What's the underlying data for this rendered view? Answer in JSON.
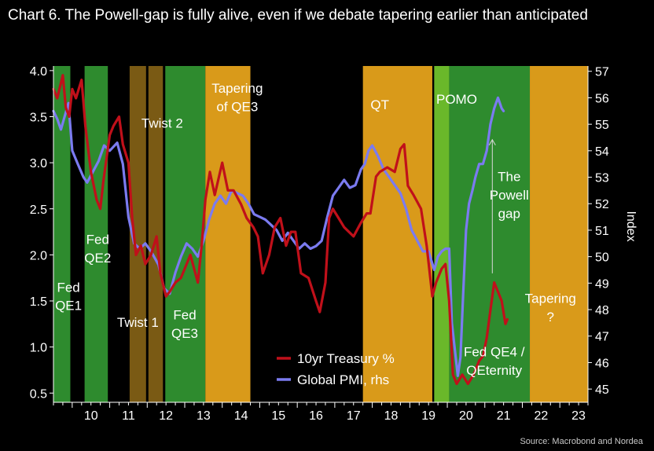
{
  "chart_data": {
    "type": "line",
    "title": "Chart 6. The Powell-gap is fully alive, even if we debate tapering earlier than anticipated",
    "source": "Source: Macrobond and Nordea",
    "xlim": [
      2009.5,
      2023.75
    ],
    "ylim_left": [
      0.4,
      4.05
    ],
    "ylim_right": [
      44.5,
      57.2
    ],
    "ylabel_right": "Index",
    "x_ticks": [
      {
        "x": 2010.0,
        "label": "10"
      },
      {
        "x": 2011.0,
        "label": "11"
      },
      {
        "x": 2012.0,
        "label": "12"
      },
      {
        "x": 2013.0,
        "label": "13"
      },
      {
        "x": 2014.0,
        "label": "14"
      },
      {
        "x": 2015.0,
        "label": "15"
      },
      {
        "x": 2016.0,
        "label": "16"
      },
      {
        "x": 2017.0,
        "label": "17"
      },
      {
        "x": 2018.0,
        "label": "18"
      },
      {
        "x": 2019.0,
        "label": "19"
      },
      {
        "x": 2020.0,
        "label": "20"
      },
      {
        "x": 2021.0,
        "label": "21"
      },
      {
        "x": 2022.0,
        "label": "22"
      },
      {
        "x": 2023.0,
        "label": "23"
      }
    ],
    "y_left_ticks": [
      {
        "v": 0.5,
        "label": "0.5"
      },
      {
        "v": 1.0,
        "label": "1.0"
      },
      {
        "v": 1.5,
        "label": "1.5"
      },
      {
        "v": 2.0,
        "label": "2.0"
      },
      {
        "v": 2.5,
        "label": "2.5"
      },
      {
        "v": 3.0,
        "label": "3.0"
      },
      {
        "v": 3.5,
        "label": "3.5"
      },
      {
        "v": 4.0,
        "label": "4.0"
      }
    ],
    "y_right_ticks": [
      {
        "v": 45,
        "label": "45"
      },
      {
        "v": 46,
        "label": "46"
      },
      {
        "v": 47,
        "label": "47"
      },
      {
        "v": 48,
        "label": "48"
      },
      {
        "v": 49,
        "label": "49"
      },
      {
        "v": 50,
        "label": "50"
      },
      {
        "v": 51,
        "label": "51"
      },
      {
        "v": 52,
        "label": "52"
      },
      {
        "v": 53,
        "label": "53"
      },
      {
        "v": 54,
        "label": "54"
      },
      {
        "v": 55,
        "label": "55"
      },
      {
        "v": 56,
        "label": "56"
      },
      {
        "v": 57,
        "label": "57"
      }
    ],
    "bands": [
      {
        "x0": 2009.5,
        "x1": 2009.95,
        "color": "#2e8b2e"
      },
      {
        "x0": 2010.33,
        "x1": 2010.95,
        "color": "#2e8b2e"
      },
      {
        "x0": 2011.5,
        "x1": 2012.0,
        "color": "#7a5a14"
      },
      {
        "x0": 2012.0,
        "x1": 2012.45,
        "color": "#7a5a14"
      },
      {
        "x0": 2012.45,
        "x1": 2013.55,
        "color": "#2e8b2e"
      },
      {
        "x0": 2013.55,
        "x1": 2014.75,
        "color": "#d99a1a"
      },
      {
        "x0": 2017.75,
        "x1": 2019.6,
        "color": "#d99a1a"
      },
      {
        "x0": 2019.65,
        "x1": 2020.05,
        "color": "#6ab82a"
      },
      {
        "x0": 2020.05,
        "x1": 2022.2,
        "color": "#2e8b2e"
      },
      {
        "x0": 2022.2,
        "x1": 2023.75,
        "color": "#d99a1a"
      }
    ],
    "band_dividers": [
      2011.5,
      2012.0,
      2012.45
    ],
    "annotations": [
      {
        "text": "Fed",
        "x": 2009.9,
        "y": 1.6,
        "anchor": "middle"
      },
      {
        "text": "QE1",
        "x": 2009.9,
        "y": 1.4,
        "anchor": "middle"
      },
      {
        "text": "Fed",
        "x": 2010.68,
        "y": 2.12,
        "anchor": "middle"
      },
      {
        "text": "QE2",
        "x": 2010.68,
        "y": 1.92,
        "anchor": "middle"
      },
      {
        "text": "Twist 2",
        "x": 2012.4,
        "y": 3.38,
        "anchor": "middle"
      },
      {
        "text": "Twist 1",
        "x": 2011.75,
        "y": 1.22,
        "anchor": "middle"
      },
      {
        "text": "Fed",
        "x": 2013.0,
        "y": 1.3,
        "anchor": "middle"
      },
      {
        "text": "QE3",
        "x": 2013.0,
        "y": 1.1,
        "anchor": "middle"
      },
      {
        "text": "Tapering",
        "x": 2014.4,
        "y": 3.76,
        "anchor": "middle"
      },
      {
        "text": "of QE3",
        "x": 2014.4,
        "y": 3.56,
        "anchor": "middle"
      },
      {
        "text": "QT",
        "x": 2018.2,
        "y": 3.58,
        "anchor": "middle"
      },
      {
        "text": "POMO",
        "x": 2020.25,
        "y": 3.64,
        "anchor": "middle"
      },
      {
        "text": "The",
        "x": 2021.65,
        "y": 2.8,
        "anchor": "middle"
      },
      {
        "text": "Powell",
        "x": 2021.65,
        "y": 2.6,
        "anchor": "middle"
      },
      {
        "text": "gap",
        "x": 2021.65,
        "y": 2.4,
        "anchor": "middle"
      },
      {
        "text": "Fed QE4 /",
        "x": 2021.25,
        "y": 0.9,
        "anchor": "middle"
      },
      {
        "text": "QEternity",
        "x": 2021.25,
        "y": 0.7,
        "anchor": "middle"
      },
      {
        "text": "Tapering",
        "x": 2022.75,
        "y": 1.48,
        "anchor": "middle"
      },
      {
        "text": "?",
        "x": 2022.75,
        "y": 1.28,
        "anchor": "middle"
      }
    ],
    "arrow": {
      "x": 2021.2,
      "y_from": 1.8,
      "y_to": 3.25
    },
    "legend": {
      "placement": "bottom-center",
      "items": [
        {
          "name": "10yr Treasury %",
          "color": "#c0101a"
        },
        {
          "name": "Global PMI, rhs",
          "color": "#7b7bf0"
        }
      ]
    },
    "series": [
      {
        "name": "10yr Treasury %",
        "axis": "left",
        "color": "#c0101a",
        "points": [
          [
            2009.5,
            3.8
          ],
          [
            2009.6,
            3.7
          ],
          [
            2009.75,
            3.95
          ],
          [
            2009.83,
            3.6
          ],
          [
            2009.92,
            3.5
          ],
          [
            2010.0,
            3.8
          ],
          [
            2010.1,
            3.7
          ],
          [
            2010.25,
            3.9
          ],
          [
            2010.35,
            3.4
          ],
          [
            2010.5,
            2.9
          ],
          [
            2010.65,
            2.6
          ],
          [
            2010.75,
            2.5
          ],
          [
            2010.83,
            2.8
          ],
          [
            2011.0,
            3.3
          ],
          [
            2011.1,
            3.4
          ],
          [
            2011.25,
            3.5
          ],
          [
            2011.35,
            3.2
          ],
          [
            2011.5,
            3.0
          ],
          [
            2011.6,
            2.4
          ],
          [
            2011.7,
            2.0
          ],
          [
            2011.83,
            2.1
          ],
          [
            2011.95,
            1.9
          ],
          [
            2012.1,
            2.0
          ],
          [
            2012.25,
            2.2
          ],
          [
            2012.35,
            1.8
          ],
          [
            2012.5,
            1.55
          ],
          [
            2012.6,
            1.6
          ],
          [
            2012.75,
            1.7
          ],
          [
            2012.9,
            1.75
          ],
          [
            2013.0,
            1.85
          ],
          [
            2013.15,
            2.0
          ],
          [
            2013.35,
            1.7
          ],
          [
            2013.45,
            2.1
          ],
          [
            2013.55,
            2.6
          ],
          [
            2013.67,
            2.9
          ],
          [
            2013.8,
            2.65
          ],
          [
            2014.0,
            3.0
          ],
          [
            2014.15,
            2.7
          ],
          [
            2014.3,
            2.7
          ],
          [
            2014.5,
            2.55
          ],
          [
            2014.65,
            2.4
          ],
          [
            2014.83,
            2.3
          ],
          [
            2014.95,
            2.2
          ],
          [
            2015.08,
            1.8
          ],
          [
            2015.25,
            2.0
          ],
          [
            2015.4,
            2.3
          ],
          [
            2015.55,
            2.4
          ],
          [
            2015.7,
            2.1
          ],
          [
            2015.83,
            2.25
          ],
          [
            2015.95,
            2.25
          ],
          [
            2016.1,
            1.8
          ],
          [
            2016.3,
            1.75
          ],
          [
            2016.5,
            1.5
          ],
          [
            2016.6,
            1.38
          ],
          [
            2016.75,
            1.7
          ],
          [
            2016.85,
            2.4
          ],
          [
            2016.95,
            2.5
          ],
          [
            2017.1,
            2.4
          ],
          [
            2017.25,
            2.3
          ],
          [
            2017.5,
            2.2
          ],
          [
            2017.7,
            2.35
          ],
          [
            2017.85,
            2.45
          ],
          [
            2017.95,
            2.45
          ],
          [
            2018.1,
            2.85
          ],
          [
            2018.2,
            2.9
          ],
          [
            2018.4,
            2.95
          ],
          [
            2018.6,
            2.9
          ],
          [
            2018.75,
            3.15
          ],
          [
            2018.85,
            3.2
          ],
          [
            2018.95,
            2.75
          ],
          [
            2019.1,
            2.65
          ],
          [
            2019.3,
            2.5
          ],
          [
            2019.45,
            2.1
          ],
          [
            2019.6,
            1.55
          ],
          [
            2019.7,
            1.7
          ],
          [
            2019.85,
            1.85
          ],
          [
            2019.95,
            1.9
          ],
          [
            2020.05,
            1.5
          ],
          [
            2020.15,
            0.7
          ],
          [
            2020.25,
            0.6
          ],
          [
            2020.4,
            0.7
          ],
          [
            2020.55,
            0.6
          ],
          [
            2020.7,
            0.7
          ],
          [
            2020.85,
            0.85
          ],
          [
            2020.95,
            0.9
          ],
          [
            2021.05,
            1.1
          ],
          [
            2021.15,
            1.4
          ],
          [
            2021.25,
            1.7
          ],
          [
            2021.35,
            1.6
          ],
          [
            2021.45,
            1.5
          ],
          [
            2021.55,
            1.25
          ],
          [
            2021.6,
            1.3
          ]
        ]
      },
      {
        "name": "Global PMI, rhs",
        "axis": "right",
        "color": "#7b7bf0",
        "points": [
          [
            2009.5,
            55.5
          ],
          [
            2009.6,
            55.2
          ],
          [
            2009.7,
            54.8
          ],
          [
            2009.8,
            55.3
          ],
          [
            2009.9,
            55.8
          ],
          [
            2010.0,
            54.0
          ],
          [
            2010.15,
            53.5
          ],
          [
            2010.3,
            53.0
          ],
          [
            2010.4,
            52.8
          ],
          [
            2010.55,
            53.2
          ],
          [
            2010.7,
            53.6
          ],
          [
            2010.85,
            54.2
          ],
          [
            2011.0,
            54.0
          ],
          [
            2011.2,
            54.3
          ],
          [
            2011.35,
            53.5
          ],
          [
            2011.5,
            51.5
          ],
          [
            2011.65,
            50.5
          ],
          [
            2011.8,
            50.3
          ],
          [
            2011.95,
            50.5
          ],
          [
            2012.1,
            50.2
          ],
          [
            2012.3,
            49.7
          ],
          [
            2012.45,
            48.8
          ],
          [
            2012.6,
            48.6
          ],
          [
            2012.75,
            49.4
          ],
          [
            2012.9,
            50.0
          ],
          [
            2013.05,
            50.5
          ],
          [
            2013.2,
            50.3
          ],
          [
            2013.35,
            50.0
          ],
          [
            2013.5,
            50.6
          ],
          [
            2013.65,
            51.4
          ],
          [
            2013.8,
            52.0
          ],
          [
            2013.95,
            52.3
          ],
          [
            2014.1,
            52.0
          ],
          [
            2014.25,
            52.5
          ],
          [
            2014.4,
            52.4
          ],
          [
            2014.55,
            52.3
          ],
          [
            2014.7,
            52.0
          ],
          [
            2014.85,
            51.6
          ],
          [
            2015.0,
            51.5
          ],
          [
            2015.15,
            51.4
          ],
          [
            2015.3,
            51.2
          ],
          [
            2015.45,
            51.0
          ],
          [
            2015.6,
            50.6
          ],
          [
            2015.75,
            50.9
          ],
          [
            2015.9,
            50.6
          ],
          [
            2016.05,
            50.3
          ],
          [
            2016.2,
            50.5
          ],
          [
            2016.35,
            50.3
          ],
          [
            2016.5,
            50.4
          ],
          [
            2016.65,
            50.6
          ],
          [
            2016.8,
            51.5
          ],
          [
            2016.95,
            52.3
          ],
          [
            2017.1,
            52.6
          ],
          [
            2017.25,
            52.9
          ],
          [
            2017.4,
            52.6
          ],
          [
            2017.55,
            52.7
          ],
          [
            2017.7,
            53.3
          ],
          [
            2017.8,
            53.5
          ],
          [
            2017.9,
            54.0
          ],
          [
            2018.0,
            54.2
          ],
          [
            2018.15,
            53.8
          ],
          [
            2018.3,
            53.3
          ],
          [
            2018.45,
            53.0
          ],
          [
            2018.6,
            52.7
          ],
          [
            2018.75,
            52.4
          ],
          [
            2018.9,
            51.8
          ],
          [
            2019.05,
            51.0
          ],
          [
            2019.2,
            50.6
          ],
          [
            2019.35,
            50.2
          ],
          [
            2019.5,
            50.2
          ],
          [
            2019.65,
            49.5
          ],
          [
            2019.75,
            50.0
          ],
          [
            2019.85,
            50.2
          ],
          [
            2019.95,
            50.3
          ],
          [
            2020.05,
            50.3
          ],
          [
            2020.12,
            47.5
          ],
          [
            2020.2,
            46.5
          ],
          [
            2020.28,
            45.5
          ],
          [
            2020.35,
            46.2
          ],
          [
            2020.42,
            48.5
          ],
          [
            2020.5,
            51.0
          ],
          [
            2020.58,
            52.0
          ],
          [
            2020.67,
            52.5
          ],
          [
            2020.75,
            53.0
          ],
          [
            2020.85,
            53.5
          ],
          [
            2020.95,
            53.5
          ],
          [
            2021.05,
            54.0
          ],
          [
            2021.15,
            55.0
          ],
          [
            2021.25,
            55.6
          ],
          [
            2021.35,
            56.0
          ],
          [
            2021.45,
            55.6
          ],
          [
            2021.5,
            55.5
          ]
        ]
      }
    ]
  }
}
